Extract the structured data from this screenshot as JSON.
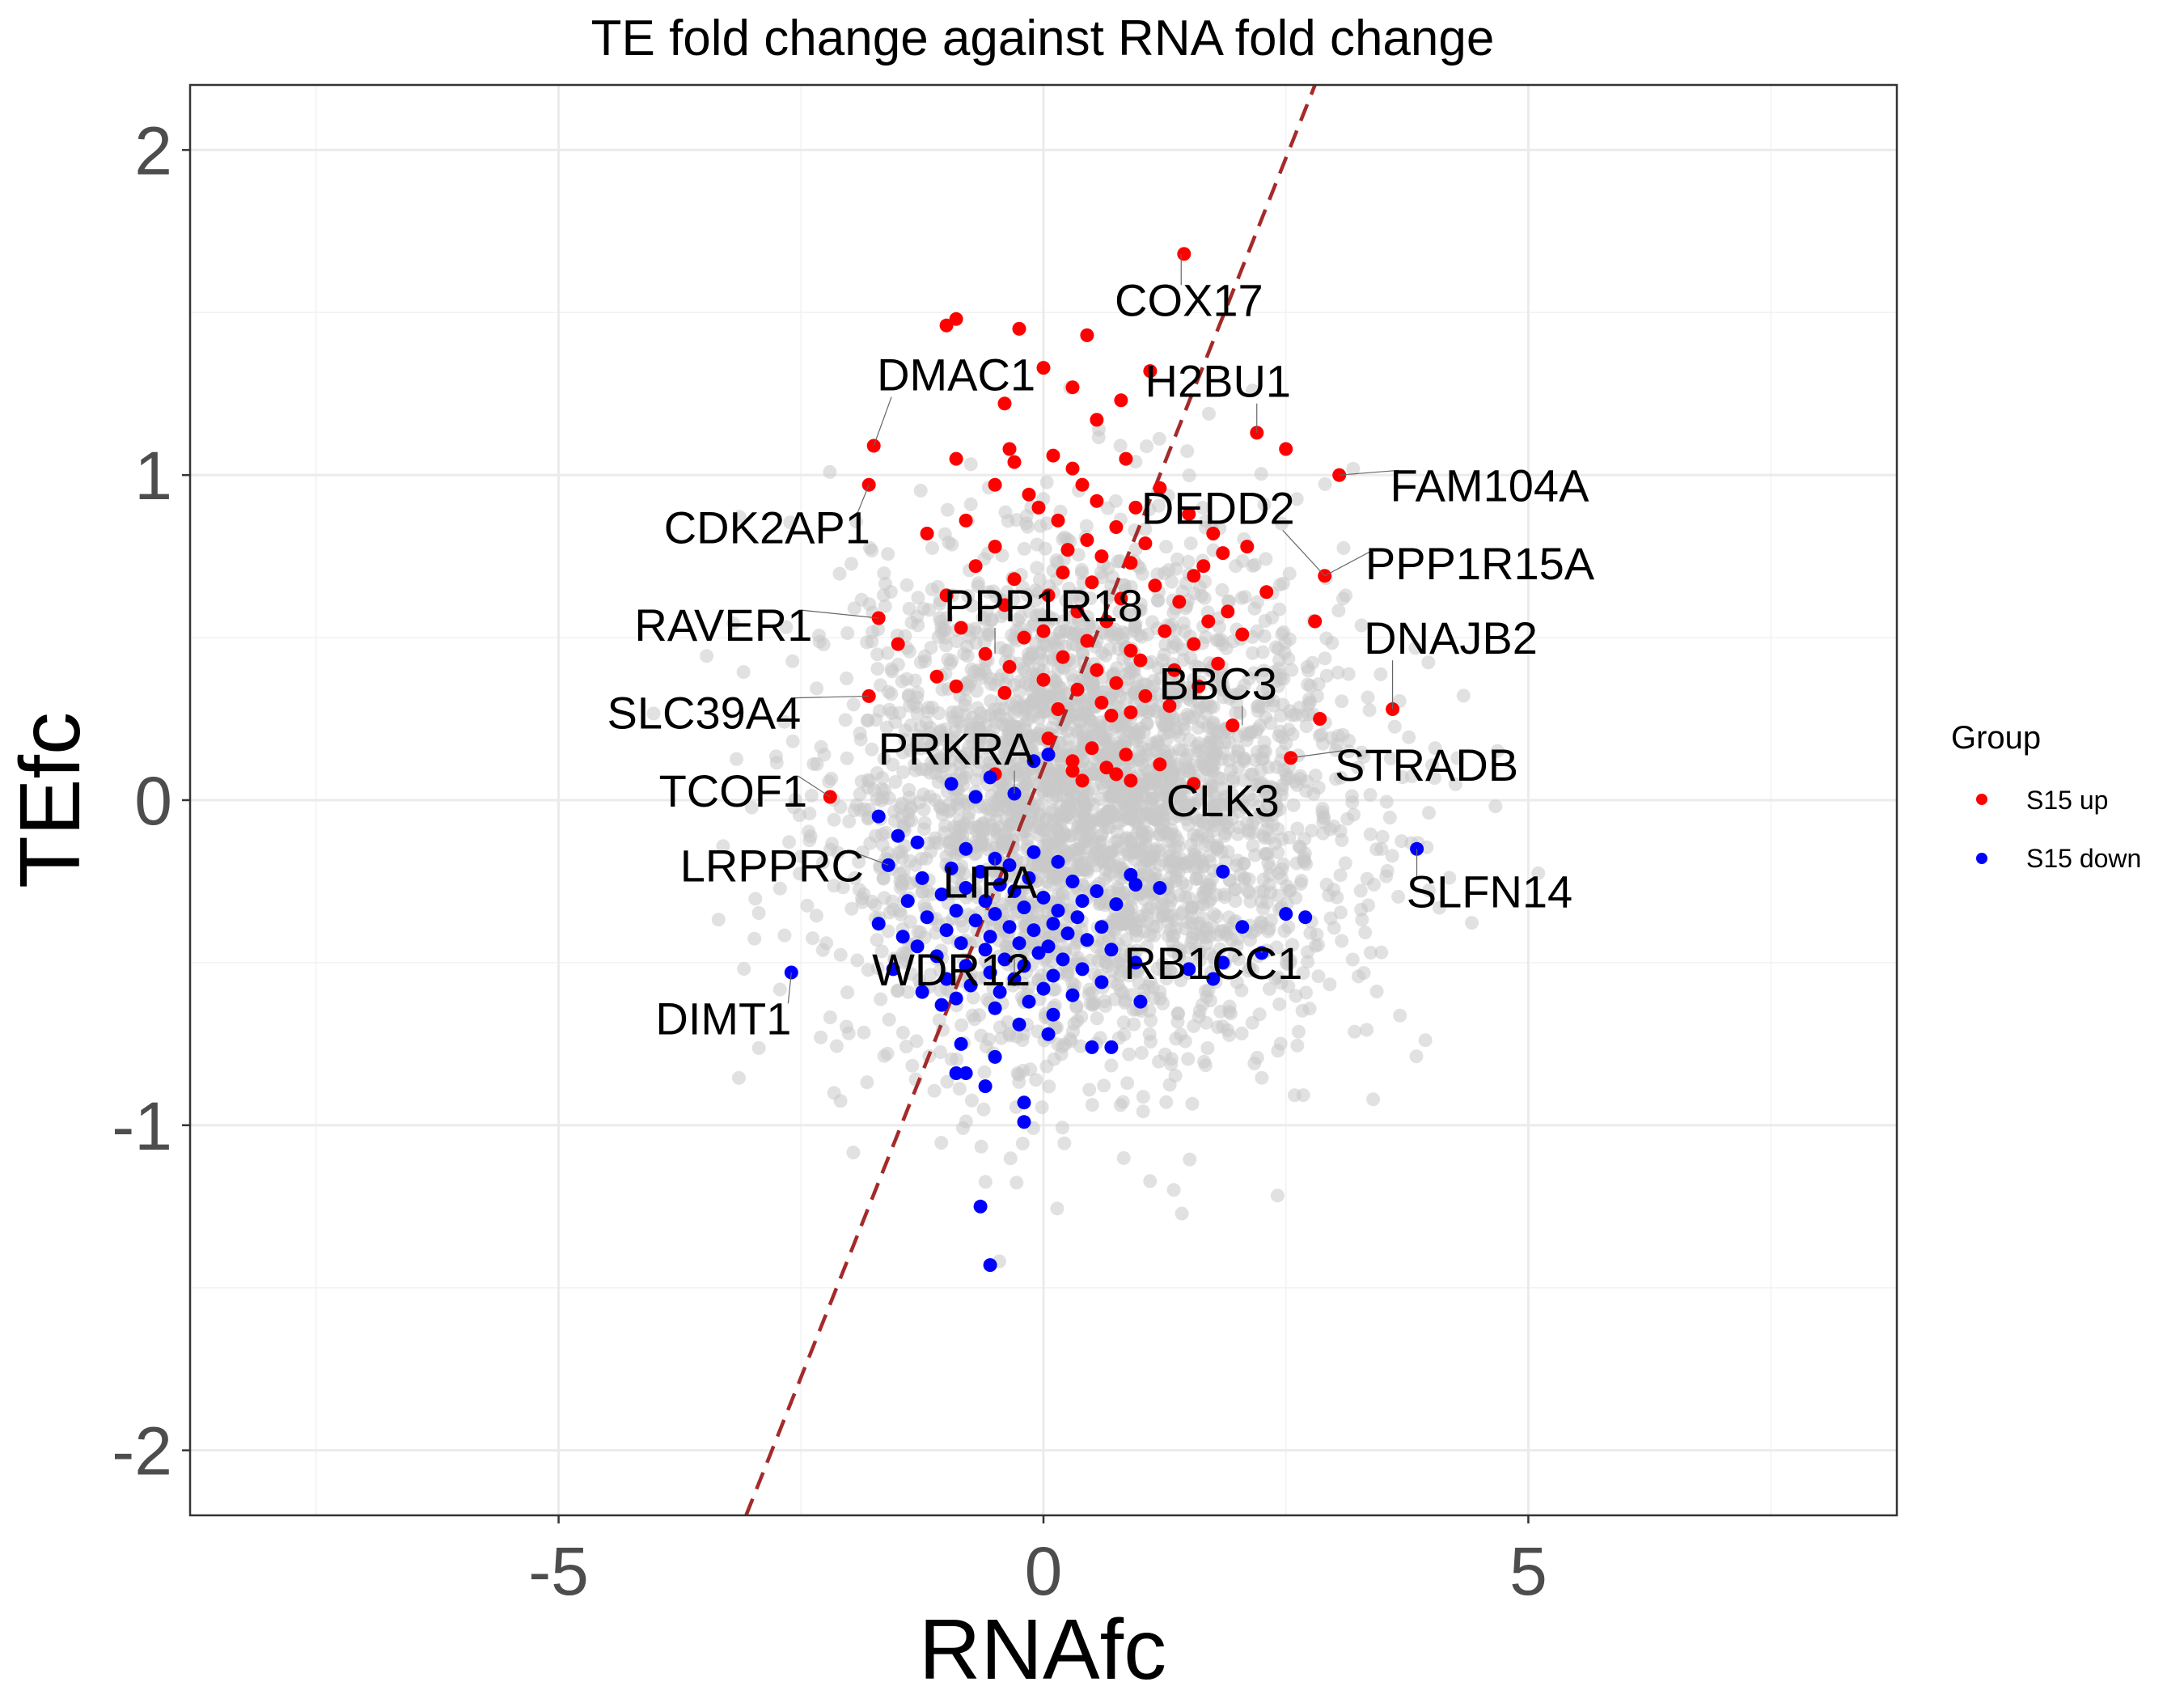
{
  "chart_data": {
    "type": "scatter",
    "title": "TE fold change against RNA fold change",
    "xlabel": "RNAfc",
    "ylabel": "TEfc",
    "xlim": [
      -8.8,
      8.8
    ],
    "ylim": [
      -2.2,
      2.2
    ],
    "x_ticks": [
      -5,
      0,
      5
    ],
    "x_tick_labels": [
      "-5",
      "0",
      "5"
    ],
    "y_ticks": [
      -2,
      -1,
      0,
      1,
      2
    ],
    "y_tick_labels": [
      "-2",
      "-1",
      "0",
      "1",
      "2"
    ],
    "grid": true,
    "legend": {
      "title": "Group",
      "position": "right",
      "entries": [
        {
          "label": "S15 up",
          "color": "#ff0000"
        },
        {
          "label": "S15 down",
          "color": "#0000ff"
        }
      ]
    },
    "colors": {
      "background_points": "#c8c8c8",
      "up": "#ff0000",
      "down": "#0000ff",
      "reference_line": "#a52a2a"
    },
    "reference_line": {
      "style": "dashed",
      "slope": 0.75,
      "intercept": 0.1
    },
    "background_cloud": {
      "color": "#c8c8c8",
      "count": 3200,
      "center_x": 0.5,
      "center_y": 0.0,
      "sd_x": 1.3,
      "sd_y": 0.38
    },
    "series": [
      {
        "name": "S15 up",
        "color": "#ff0000",
        "points": [
          [
            1.45,
            1.68
          ],
          [
            -0.9,
            1.48
          ],
          [
            -1.0,
            1.46
          ],
          [
            -0.25,
            1.45
          ],
          [
            0.45,
            1.43
          ],
          [
            0.0,
            1.33
          ],
          [
            1.1,
            1.32
          ],
          [
            0.3,
            1.27
          ],
          [
            0.8,
            1.23
          ],
          [
            -0.4,
            1.22
          ],
          [
            0.55,
            1.17
          ],
          [
            2.2,
            1.13
          ],
          [
            2.5,
            1.08
          ],
          [
            -1.75,
            1.09
          ],
          [
            -0.35,
            1.08
          ],
          [
            0.1,
            1.06
          ],
          [
            -0.9,
            1.05
          ],
          [
            -0.3,
            1.04
          ],
          [
            0.85,
            1.05
          ],
          [
            0.3,
            1.02
          ],
          [
            3.05,
            1.0
          ],
          [
            -1.8,
            0.97
          ],
          [
            -0.5,
            0.97
          ],
          [
            0.4,
            0.97
          ],
          [
            1.2,
            0.96
          ],
          [
            -0.15,
            0.94
          ],
          [
            0.55,
            0.92
          ],
          [
            -0.05,
            0.9
          ],
          [
            0.95,
            0.9
          ],
          [
            1.5,
            0.88
          ],
          [
            -0.8,
            0.86
          ],
          [
            0.15,
            0.86
          ],
          [
            0.75,
            0.84
          ],
          [
            1.75,
            0.82
          ],
          [
            -1.2,
            0.82
          ],
          [
            0.45,
            0.8
          ],
          [
            1.05,
            0.79
          ],
          [
            2.1,
            0.78
          ],
          [
            -0.5,
            0.78
          ],
          [
            0.25,
            0.77
          ],
          [
            1.85,
            0.76
          ],
          [
            0.6,
            0.75
          ],
          [
            0.9,
            0.73
          ],
          [
            -0.7,
            0.72
          ],
          [
            1.65,
            0.72
          ],
          [
            2.9,
            0.69
          ],
          [
            0.2,
            0.7
          ],
          [
            1.55,
            0.69
          ],
          [
            -0.3,
            0.68
          ],
          [
            0.5,
            0.67
          ],
          [
            1.15,
            0.66
          ],
          [
            2.3,
            0.64
          ],
          [
            -1.0,
            0.63
          ],
          [
            0.05,
            0.63
          ],
          [
            0.8,
            0.62
          ],
          [
            1.4,
            0.61
          ],
          [
            -0.4,
            0.6
          ],
          [
            1.9,
            0.58
          ],
          [
            0.35,
            0.58
          ],
          [
            2.8,
            0.55
          ],
          [
            -1.7,
            0.56
          ],
          [
            1.7,
            0.55
          ],
          [
            0.65,
            0.55
          ],
          [
            -0.85,
            0.53
          ],
          [
            0.0,
            0.52
          ],
          [
            1.25,
            0.52
          ],
          [
            2.05,
            0.51
          ],
          [
            -0.2,
            0.5
          ],
          [
            0.45,
            0.49
          ],
          [
            1.55,
            0.48
          ],
          [
            -1.5,
            0.48
          ],
          [
            0.9,
            0.46
          ],
          [
            -0.6,
            0.45
          ],
          [
            0.2,
            0.44
          ],
          [
            1.0,
            0.43
          ],
          [
            1.8,
            0.42
          ],
          [
            -0.35,
            0.41
          ],
          [
            0.55,
            0.4
          ],
          [
            1.35,
            0.4
          ],
          [
            -1.1,
            0.38
          ],
          [
            0.0,
            0.37
          ],
          [
            0.75,
            0.36
          ],
          [
            -0.9,
            0.35
          ],
          [
            1.6,
            0.35
          ],
          [
            0.35,
            0.34
          ],
          [
            -0.4,
            0.33
          ],
          [
            1.05,
            0.32
          ],
          [
            -1.8,
            0.32
          ],
          [
            0.6,
            0.3
          ],
          [
            1.3,
            0.29
          ],
          [
            3.6,
            0.28
          ],
          [
            0.15,
            0.28
          ],
          [
            0.9,
            0.27
          ],
          [
            0.7,
            0.26
          ],
          [
            2.85,
            0.25
          ],
          [
            1.95,
            0.23
          ],
          [
            0.05,
            0.19
          ],
          [
            0.5,
            0.16
          ],
          [
            0.85,
            0.14
          ],
          [
            2.55,
            0.13
          ],
          [
            0.3,
            0.12
          ],
          [
            1.2,
            0.11
          ],
          [
            0.65,
            0.1
          ],
          [
            0.3,
            0.09
          ],
          [
            -0.5,
            0.08
          ],
          [
            0.9,
            0.06
          ],
          [
            1.55,
            0.05
          ],
          [
            -2.2,
            0.01
          ],
          [
            0.75,
            0.08
          ],
          [
            0.4,
            0.06
          ]
        ]
      },
      {
        "name": "S15 down",
        "color": "#0000ff",
        "points": [
          [
            0.05,
            0.14
          ],
          [
            -0.1,
            0.12
          ],
          [
            -0.55,
            0.07
          ],
          [
            -0.95,
            0.05
          ],
          [
            -0.3,
            0.02
          ],
          [
            -0.7,
            0.01
          ],
          [
            -1.7,
            -0.05
          ],
          [
            -1.5,
            -0.11
          ],
          [
            -1.3,
            -0.13
          ],
          [
            -0.8,
            -0.15
          ],
          [
            -0.1,
            -0.16
          ],
          [
            3.85,
            -0.15
          ],
          [
            -0.5,
            -0.18
          ],
          [
            -1.6,
            -0.2
          ],
          [
            -0.35,
            -0.2
          ],
          [
            0.15,
            -0.19
          ],
          [
            -0.95,
            -0.21
          ],
          [
            -0.65,
            -0.22
          ],
          [
            0.9,
            -0.23
          ],
          [
            -0.15,
            -0.24
          ],
          [
            1.85,
            -0.22
          ],
          [
            -1.25,
            -0.24
          ],
          [
            0.3,
            -0.25
          ],
          [
            -0.45,
            -0.26
          ],
          [
            0.95,
            -0.26
          ],
          [
            1.2,
            -0.27
          ],
          [
            -0.8,
            -0.27
          ],
          [
            -0.3,
            -0.28
          ],
          [
            0.55,
            -0.28
          ],
          [
            -1.05,
            -0.29
          ],
          [
            0.0,
            -0.3
          ],
          [
            -0.6,
            -0.31
          ],
          [
            0.4,
            -0.31
          ],
          [
            -1.4,
            -0.31
          ],
          [
            0.75,
            -0.32
          ],
          [
            -0.2,
            -0.33
          ],
          [
            -0.9,
            -0.34
          ],
          [
            0.15,
            -0.34
          ],
          [
            -0.5,
            -0.35
          ],
          [
            2.5,
            -0.35
          ],
          [
            -1.2,
            -0.36
          ],
          [
            0.35,
            -0.36
          ],
          [
            -0.7,
            -0.37
          ],
          [
            2.7,
            -0.36
          ],
          [
            0.1,
            -0.38
          ],
          [
            -1.7,
            -0.38
          ],
          [
            -0.35,
            -0.39
          ],
          [
            0.6,
            -0.39
          ],
          [
            -1.0,
            -0.4
          ],
          [
            -0.1,
            -0.4
          ],
          [
            2.05,
            -0.39
          ],
          [
            0.25,
            -0.41
          ],
          [
            -0.55,
            -0.42
          ],
          [
            -1.45,
            -0.42
          ],
          [
            0.45,
            -0.43
          ],
          [
            -0.85,
            -0.44
          ],
          [
            -0.25,
            -0.44
          ],
          [
            0.05,
            -0.45
          ],
          [
            -1.3,
            -0.45
          ],
          [
            -0.6,
            -0.46
          ],
          [
            0.7,
            -0.46
          ],
          [
            -0.05,
            -0.47
          ],
          [
            2.25,
            -0.47
          ],
          [
            -1.1,
            -0.48
          ],
          [
            0.2,
            -0.49
          ],
          [
            -0.4,
            -0.49
          ],
          [
            0.95,
            -0.5
          ],
          [
            -0.8,
            -0.51
          ],
          [
            -0.2,
            -0.51
          ],
          [
            1.85,
            -0.5
          ],
          [
            0.4,
            -0.52
          ],
          [
            -1.55,
            -0.52
          ],
          [
            1.5,
            -0.52
          ],
          [
            -0.55,
            -0.53
          ],
          [
            0.1,
            -0.54
          ],
          [
            -1.0,
            -0.55
          ],
          [
            -0.3,
            -0.55
          ],
          [
            1.75,
            -0.55
          ],
          [
            0.6,
            -0.56
          ],
          [
            -2.6,
            -0.53
          ],
          [
            -0.75,
            -0.57
          ],
          [
            0.0,
            -0.58
          ],
          [
            -1.25,
            -0.59
          ],
          [
            -0.45,
            -0.59
          ],
          [
            0.3,
            -0.6
          ],
          [
            -0.9,
            -0.61
          ],
          [
            1.0,
            -0.62
          ],
          [
            -0.15,
            -0.62
          ],
          [
            -1.05,
            -0.63
          ],
          [
            -0.5,
            -0.64
          ],
          [
            0.1,
            -0.66
          ],
          [
            -0.25,
            -0.69
          ],
          [
            0.05,
            -0.72
          ],
          [
            0.7,
            -0.76
          ],
          [
            -0.85,
            -0.75
          ],
          [
            0.5,
            -0.76
          ],
          [
            -0.5,
            -0.79
          ],
          [
            -0.8,
            -0.84
          ],
          [
            -0.9,
            -0.84
          ],
          [
            -0.6,
            -0.88
          ],
          [
            -0.2,
            -0.93
          ],
          [
            -0.2,
            -0.99
          ],
          [
            -0.65,
            -1.25
          ],
          [
            -0.55,
            -1.43
          ]
        ]
      }
    ],
    "annotations": [
      {
        "text": "COX17",
        "x": 1.5,
        "y": 1.49,
        "point_x": 1.42,
        "point_y": 1.68
      },
      {
        "text": "DMAC1",
        "x": -0.9,
        "y": 1.26,
        "point_x": -1.75,
        "point_y": 1.09
      },
      {
        "text": "H2BU1",
        "x": 1.8,
        "y": 1.24,
        "point_x": 2.2,
        "point_y": 1.13
      },
      {
        "text": "FAM104A",
        "x": 4.6,
        "y": 0.92,
        "point_x": 3.05,
        "point_y": 1.0
      },
      {
        "text": "CDK2AP1",
        "x": -2.85,
        "y": 0.79,
        "point_x": -1.8,
        "point_y": 0.97
      },
      {
        "text": "DEDD2",
        "x": 1.8,
        "y": 0.85,
        "point_x": 2.9,
        "point_y": 0.69
      },
      {
        "text": "PPP1R15A",
        "x": 4.5,
        "y": 0.68,
        "point_x": 2.9,
        "point_y": 0.69
      },
      {
        "text": "PPP1R18",
        "x": 0.0,
        "y": 0.55,
        "point_x": -0.5,
        "point_y": 0.45
      },
      {
        "text": "RAVER1",
        "x": -3.3,
        "y": 0.49,
        "point_x": -1.7,
        "point_y": 0.56
      },
      {
        "text": "DNAJB2",
        "x": 4.2,
        "y": 0.45,
        "point_x": 3.6,
        "point_y": 0.28
      },
      {
        "text": "BBC3",
        "x": 1.8,
        "y": 0.31,
        "point_x": 2.05,
        "point_y": 0.23
      },
      {
        "text": "SLC39A4",
        "x": -3.5,
        "y": 0.22,
        "point_x": -1.8,
        "point_y": 0.32
      },
      {
        "text": "PRKRA",
        "x": -0.9,
        "y": 0.11,
        "point_x": -0.3,
        "point_y": 0.02
      },
      {
        "text": "STRADB",
        "x": 3.95,
        "y": 0.06,
        "point_x": 2.55,
        "point_y": 0.13
      },
      {
        "text": "TCOF1",
        "x": -3.2,
        "y": -0.02,
        "point_x": -2.2,
        "point_y": 0.01
      },
      {
        "text": "CLK3",
        "x": 1.85,
        "y": -0.05,
        "point_x": 1.6,
        "point_y": 0.05
      },
      {
        "text": "LRPPRC",
        "x": -2.8,
        "y": -0.25,
        "point_x": -1.6,
        "point_y": -0.2
      },
      {
        "text": "LIPA",
        "x": -0.55,
        "y": -0.3,
        "point_x": -0.5,
        "point_y": -0.18
      },
      {
        "text": "SLFN14",
        "x": 4.6,
        "y": -0.33,
        "point_x": 3.85,
        "point_y": -0.15
      },
      {
        "text": "RB1CC1",
        "x": 1.75,
        "y": -0.55,
        "point_x": 2.25,
        "point_y": -0.47
      },
      {
        "text": "WDR12",
        "x": -0.95,
        "y": -0.57,
        "point_x": -0.3,
        "point_y": -0.55
      },
      {
        "text": "DIMT1",
        "x": -3.3,
        "y": -0.72,
        "point_x": -2.6,
        "point_y": -0.53
      }
    ]
  }
}
